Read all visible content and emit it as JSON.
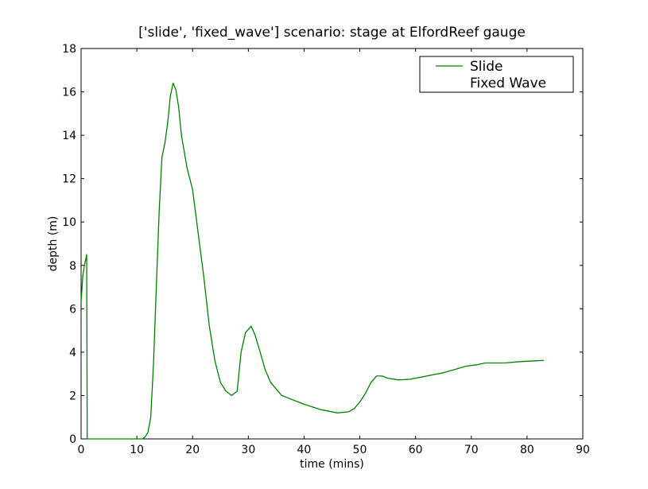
{
  "chart_data": {
    "type": "line",
    "title": "['slide', 'fixed_wave'] scenario: stage at ElfordReef gauge",
    "xlabel": "time (mins)",
    "ylabel": "depth (m)",
    "xlim": [
      0,
      90
    ],
    "ylim": [
      0,
      18
    ],
    "xticks": [
      "0",
      "10",
      "20",
      "30",
      "40",
      "50",
      "60",
      "70",
      "80",
      "90"
    ],
    "yticks": [
      "0",
      "2",
      "4",
      "6",
      "8",
      "10",
      "12",
      "14",
      "16",
      "18"
    ],
    "grid": false,
    "legend_position": "top-right",
    "series": [
      {
        "name": "Slide",
        "color": "#008000",
        "x": [
          0,
          0.3,
          0.6,
          1.0,
          1.1,
          11,
          11.5,
          12,
          12.5,
          13,
          13.5,
          14,
          14.5,
          15,
          15.5,
          16,
          16.5,
          17,
          17.5,
          18,
          19,
          20,
          21,
          22,
          23,
          24,
          25,
          26,
          27,
          28,
          28.7,
          29.5,
          30.5,
          31.2,
          32,
          33,
          34,
          35,
          36,
          37,
          40,
          43,
          46,
          48,
          49,
          50,
          51,
          52,
          53,
          54,
          55,
          57,
          59,
          61,
          63,
          65,
          67,
          69,
          71,
          72.5,
          74,
          76,
          78,
          80,
          83
        ],
        "y": [
          6.3,
          7.5,
          8.0,
          8.5,
          0,
          0,
          0.1,
          0.3,
          1.0,
          3.5,
          7.0,
          10.5,
          13.0,
          13.6,
          14.5,
          15.8,
          16.4,
          16.1,
          15.3,
          14.0,
          12.5,
          11.5,
          9.5,
          7.5,
          5.2,
          3.6,
          2.6,
          2.2,
          2.0,
          2.2,
          4.0,
          4.9,
          5.2,
          4.8,
          4.1,
          3.2,
          2.6,
          2.3,
          2.0,
          1.9,
          1.6,
          1.35,
          1.2,
          1.25,
          1.4,
          1.7,
          2.1,
          2.6,
          2.9,
          2.9,
          2.8,
          2.72,
          2.75,
          2.85,
          2.95,
          3.05,
          3.2,
          3.35,
          3.42,
          3.5,
          3.5,
          3.5,
          3.55,
          3.58,
          3.62
        ]
      },
      {
        "name": "Fixed Wave",
        "color": "#0000ff",
        "x": [],
        "y": []
      }
    ]
  }
}
